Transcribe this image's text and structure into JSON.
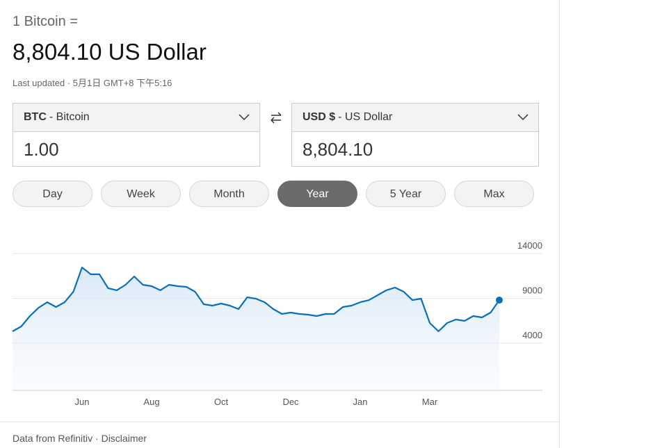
{
  "header": {
    "label": "1 Bitcoin =",
    "value": "8,804.10 US Dollar",
    "updated": "Last updated · 5月1日 GMT+8 下午5:16"
  },
  "converter": {
    "from": {
      "code": "BTC",
      "name": "- Bitcoin",
      "amount": "1.00"
    },
    "to": {
      "code": "USD $",
      "name": "- US Dollar",
      "amount": "8,804.10"
    }
  },
  "ranges": {
    "options": [
      "Day",
      "Week",
      "Month",
      "Year",
      "5 Year",
      "Max"
    ],
    "selected": 3
  },
  "chart_data": {
    "type": "line",
    "categories": [
      null,
      null,
      null,
      null,
      null,
      null,
      null,
      null,
      "Jun",
      null,
      null,
      null,
      null,
      null,
      null,
      null,
      "Aug",
      null,
      null,
      null,
      null,
      null,
      null,
      null,
      "Oct",
      null,
      null,
      null,
      null,
      null,
      null,
      null,
      "Dec",
      null,
      null,
      null,
      null,
      null,
      null,
      null,
      "Jan",
      null,
      null,
      null,
      null,
      null,
      null,
      null,
      "Mar",
      null,
      null,
      null,
      null,
      null,
      null,
      null,
      null
    ],
    "series": [
      {
        "color": "#0a6ebd",
        "values": [
          5320,
          5860,
          7020,
          7950,
          8570,
          8030,
          8570,
          9740,
          12450,
          11680,
          11680,
          10130,
          9900,
          10510,
          11440,
          10510,
          10360,
          9900,
          10510,
          10360,
          10280,
          9740,
          8340,
          8190,
          8420,
          8190,
          7800,
          9120,
          8960,
          8570,
          7800,
          7260,
          7410,
          7260,
          7180,
          7020,
          7260,
          7260,
          8030,
          8190,
          8570,
          8800,
          9350,
          9900,
          10200,
          9740,
          8800,
          8960,
          6250,
          5320,
          6250,
          6640,
          6480,
          7020,
          6870,
          7410,
          8804.1
        ]
      }
    ],
    "ylim": [
      -1270,
      14000
    ],
    "yticks": [
      4000,
      9000,
      14000
    ],
    "grid": true
  },
  "footer": {
    "text": "Data from Refinitiv · Disclaimer"
  }
}
